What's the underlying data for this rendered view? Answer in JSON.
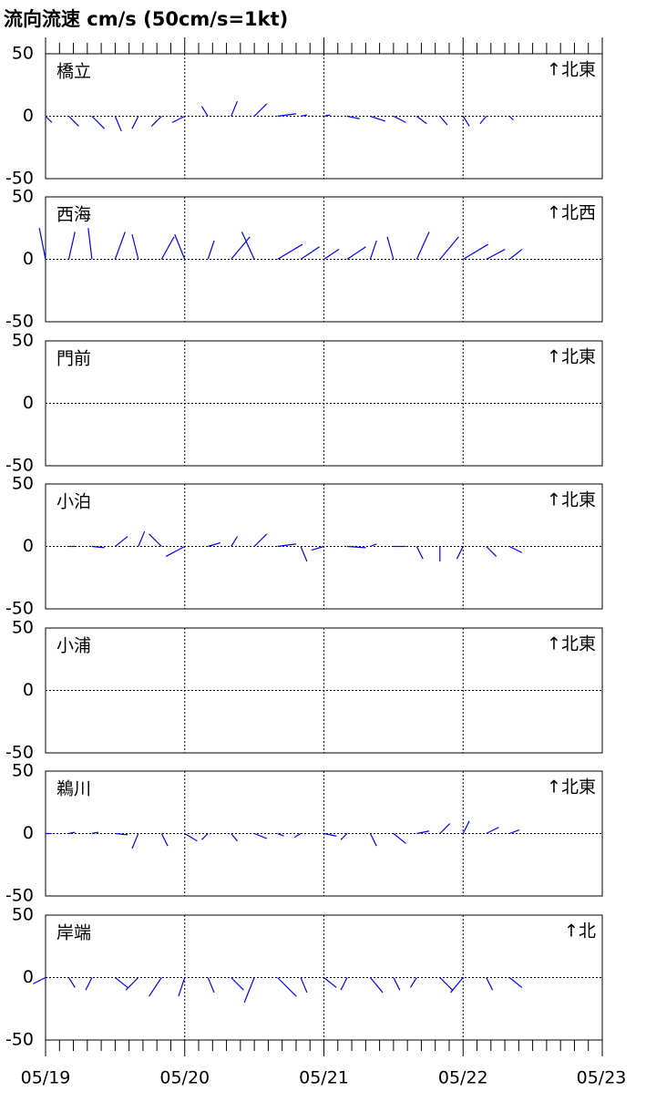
{
  "title": "流向流速 cm/s (50cm/s=1kt)",
  "chart_data": [
    {
      "type": "stick",
      "title": "橋立",
      "direction_label": "↑北東",
      "color": "#0000ff",
      "xlim": [
        0,
        96
      ],
      "xticks": [
        {
          "value": 0,
          "label": "05/19"
        },
        {
          "value": 24,
          "label": "05/20"
        },
        {
          "value": 48,
          "label": "05/21"
        },
        {
          "value": 72,
          "label": "05/22"
        },
        {
          "value": 96,
          "label": "05/23"
        }
      ],
      "ylim": [
        -50,
        50
      ],
      "yticks": [
        -50,
        0,
        50
      ],
      "x": [
        0,
        4,
        8,
        12,
        16,
        20,
        24,
        28,
        32,
        36,
        40,
        44,
        48,
        52,
        56,
        60,
        64,
        68,
        72,
        76,
        80
      ],
      "u": [
        5,
        8,
        10,
        5,
        -5,
        -8,
        -10,
        -5,
        5,
        10,
        15,
        5,
        5,
        10,
        12,
        10,
        8,
        6,
        5,
        -5,
        3
      ],
      "v": [
        -5,
        -8,
        -10,
        -12,
        -10,
        -8,
        -5,
        8,
        12,
        10,
        2,
        1,
        1,
        -2,
        -4,
        -5,
        -6,
        -7,
        -8,
        -6,
        -3
      ]
    },
    {
      "type": "stick",
      "title": "西海",
      "direction_label": "↑北西",
      "color": "#0000ff",
      "xlim": [
        0,
        96
      ],
      "xticks": [
        {
          "value": 0,
          "label": "05/19"
        },
        {
          "value": 24,
          "label": "05/20"
        },
        {
          "value": 48,
          "label": "05/21"
        },
        {
          "value": 72,
          "label": "05/22"
        },
        {
          "value": 96,
          "label": "05/23"
        }
      ],
      "ylim": [
        -50,
        50
      ],
      "yticks": [
        -50,
        0,
        50
      ],
      "x": [
        0,
        4,
        8,
        12,
        16,
        20,
        24,
        28,
        32,
        36,
        40,
        44,
        48,
        52,
        56,
        60,
        64,
        68,
        72,
        76,
        80
      ],
      "u": [
        -5,
        5,
        -3,
        8,
        -5,
        10,
        -8,
        5,
        15,
        -10,
        20,
        15,
        12,
        15,
        5,
        -5,
        10,
        15,
        20,
        15,
        10
      ],
      "v": [
        25,
        22,
        25,
        22,
        20,
        18,
        20,
        15,
        18,
        22,
        12,
        10,
        8,
        10,
        15,
        18,
        22,
        18,
        12,
        8,
        8
      ]
    },
    {
      "type": "stick",
      "title": "門前",
      "direction_label": "↑北東",
      "color": "#0000ff",
      "xlim": [
        0,
        96
      ],
      "xticks": [
        {
          "value": 0,
          "label": "05/19"
        },
        {
          "value": 24,
          "label": "05/20"
        },
        {
          "value": 48,
          "label": "05/21"
        },
        {
          "value": 72,
          "label": "05/22"
        },
        {
          "value": 96,
          "label": "05/23"
        }
      ],
      "ylim": [
        -50,
        50
      ],
      "yticks": [
        -50,
        0,
        50
      ],
      "x": [],
      "u": [],
      "v": []
    },
    {
      "type": "stick",
      "title": "小泊",
      "direction_label": "↑北東",
      "color": "#0000ff",
      "xlim": [
        0,
        96
      ],
      "xticks": [
        {
          "value": 0,
          "label": "05/19"
        },
        {
          "value": 24,
          "label": "05/20"
        },
        {
          "value": 48,
          "label": "05/21"
        },
        {
          "value": 72,
          "label": "05/22"
        },
        {
          "value": 96,
          "label": "05/23"
        }
      ],
      "ylim": [
        -50,
        50
      ],
      "yticks": [
        -50,
        0,
        50
      ],
      "x": [
        0,
        4,
        8,
        12,
        16,
        20,
        24,
        28,
        32,
        36,
        40,
        44,
        48,
        52,
        56,
        60,
        64,
        68,
        72,
        76,
        80
      ],
      "u": [
        0,
        5,
        10,
        10,
        5,
        -10,
        -15,
        10,
        5,
        10,
        15,
        5,
        -10,
        15,
        5,
        10,
        5,
        0,
        -5,
        8,
        10
      ],
      "v": [
        0,
        0,
        -1,
        8,
        12,
        10,
        -8,
        3,
        8,
        10,
        2,
        -12,
        -3,
        -1,
        2,
        0,
        -10,
        -12,
        -10,
        -8,
        -5
      ]
    },
    {
      "type": "stick",
      "title": "小浦",
      "direction_label": "↑北東",
      "color": "#0000ff",
      "xlim": [
        0,
        96
      ],
      "xticks": [
        {
          "value": 0,
          "label": "05/19"
        },
        {
          "value": 24,
          "label": "05/20"
        },
        {
          "value": 48,
          "label": "05/21"
        },
        {
          "value": 72,
          "label": "05/22"
        },
        {
          "value": 96,
          "label": "05/23"
        }
      ],
      "ylim": [
        -50,
        50
      ],
      "yticks": [
        -50,
        0,
        50
      ],
      "x": [],
      "u": [],
      "v": []
    },
    {
      "type": "stick",
      "title": "鵜川",
      "direction_label": "↑北東",
      "color": "#0000ff",
      "xlim": [
        0,
        96
      ],
      "xticks": [
        {
          "value": 0,
          "label": "05/19"
        },
        {
          "value": 24,
          "label": "05/20"
        },
        {
          "value": 48,
          "label": "05/21"
        },
        {
          "value": 72,
          "label": "05/22"
        },
        {
          "value": 96,
          "label": "05/23"
        }
      ],
      "ylim": [
        -50,
        50
      ],
      "yticks": [
        -50,
        0,
        50
      ],
      "x": [
        0,
        4,
        8,
        12,
        16,
        20,
        24,
        28,
        32,
        36,
        40,
        44,
        48,
        52,
        56,
        60,
        64,
        68,
        72,
        76,
        80
      ],
      "u": [
        5,
        5,
        5,
        10,
        -5,
        5,
        10,
        -5,
        5,
        10,
        5,
        -5,
        10,
        -5,
        5,
        10,
        10,
        8,
        5,
        10,
        8
      ],
      "v": [
        0,
        1,
        1,
        -1,
        -12,
        -10,
        -6,
        -5,
        -6,
        -4,
        -2,
        -3,
        -2,
        -5,
        -10,
        -8,
        2,
        8,
        10,
        5,
        3
      ]
    },
    {
      "type": "stick",
      "title": "岸端",
      "direction_label": "↑北",
      "color": "#0000ff",
      "xlim": [
        0,
        96
      ],
      "xticks": [
        {
          "value": 0,
          "label": "05/19"
        },
        {
          "value": 24,
          "label": "05/20"
        },
        {
          "value": 48,
          "label": "05/21"
        },
        {
          "value": 72,
          "label": "05/22"
        },
        {
          "value": 96,
          "label": "05/23"
        }
      ],
      "ylim": [
        -50,
        50
      ],
      "yticks": [
        -50,
        0,
        50
      ],
      "x": [
        0,
        4,
        8,
        12,
        16,
        20,
        24,
        28,
        32,
        36,
        40,
        44,
        48,
        52,
        56,
        60,
        64,
        68,
        72,
        76,
        80
      ],
      "u": [
        -10,
        5,
        -5,
        10,
        -10,
        -10,
        -5,
        5,
        10,
        -8,
        15,
        5,
        10,
        -5,
        10,
        5,
        -5,
        10,
        -10,
        5,
        10
      ],
      "v": [
        -5,
        -8,
        -10,
        -8,
        -10,
        -15,
        -15,
        -12,
        -10,
        -20,
        -15,
        -12,
        -8,
        -10,
        -12,
        -10,
        -8,
        -10,
        -12,
        -10,
        -8
      ]
    }
  ]
}
